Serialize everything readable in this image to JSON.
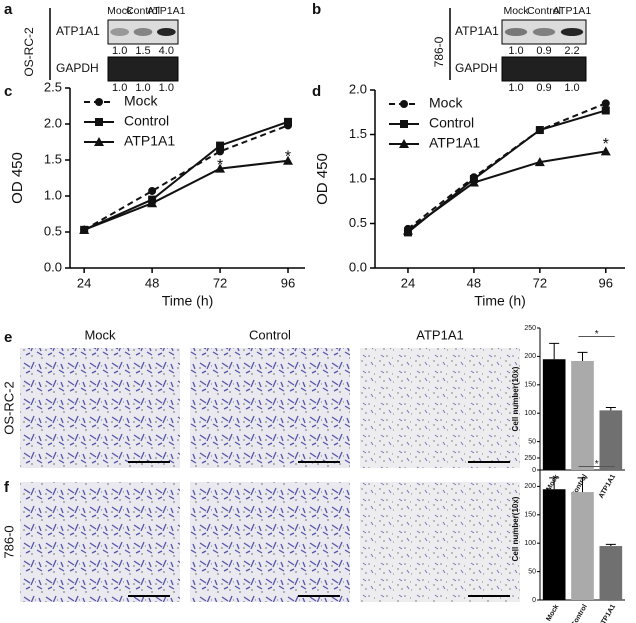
{
  "panel_labels": [
    "a",
    "b",
    "c",
    "d",
    "e",
    "f"
  ],
  "blots": [
    {
      "cell_line": "OS-RC-2",
      "lanes": [
        "Mock",
        "Control",
        "ATP1A1"
      ],
      "rows": [
        {
          "protein": "ATP1A1",
          "quant": [
            "1.0",
            "1.5",
            "4.0"
          ]
        },
        {
          "protein": "GAPDH",
          "quant": [
            "1.0",
            "1.0",
            "1.0"
          ]
        }
      ]
    },
    {
      "cell_line": "786-0",
      "lanes": [
        "Mock",
        "Control",
        "ATP1A1"
      ],
      "rows": [
        {
          "protein": "ATP1A1",
          "quant": [
            "1.0",
            "0.9",
            "2.2"
          ]
        },
        {
          "protein": "GAPDH",
          "quant": [
            "1.0",
            "0.9",
            "1.0"
          ]
        }
      ]
    }
  ],
  "micrographs": {
    "columns": [
      "Mock",
      "Control",
      "ATP1A1"
    ],
    "rows": [
      "OS-RC-2",
      "786-0"
    ]
  },
  "chart_data": [
    {
      "type": "line",
      "xlabel": "Time (h)",
      "ylabel": "OD 450",
      "x": [
        24,
        48,
        72,
        96
      ],
      "xlim": [
        19,
        102
      ],
      "xticks": [
        24,
        48,
        72,
        96
      ],
      "ylim": [
        0,
        2.5
      ],
      "yticks": [
        {
          "value": 0,
          "label": "0.0"
        },
        0.5,
        {
          "value": 1,
          "label": "1.0"
        },
        1.5,
        {
          "value": 2,
          "label": "2.0"
        },
        2.5
      ],
      "series": [
        {
          "name": "Mock",
          "color": "#111111",
          "marker": "circle",
          "dashed": true,
          "values": [
            0.53,
            1.07,
            1.62,
            1.98
          ]
        },
        {
          "name": "Control",
          "color": "#111111",
          "marker": "square",
          "dashed": false,
          "values": [
            0.53,
            0.95,
            1.7,
            2.03
          ]
        },
        {
          "name": "ATP1A1",
          "color": "#111111",
          "marker": "triangle",
          "dashed": false,
          "values": [
            0.53,
            0.9,
            1.38,
            1.49
          ]
        }
      ],
      "annotations": [
        {
          "text": "*",
          "x": 72,
          "y": 1.5
        },
        {
          "text": "*",
          "x": 96,
          "y": 1.62
        }
      ]
    },
    {
      "type": "line",
      "xlabel": "Time (h)",
      "ylabel": "OD 450",
      "x": [
        24,
        48,
        72,
        96
      ],
      "xlim": [
        12,
        103
      ],
      "xticks": [
        24,
        48,
        72,
        96
      ],
      "ylim": [
        0,
        2
      ],
      "yticks": [
        {
          "value": 0,
          "label": "0.0"
        },
        0.5,
        {
          "value": 1,
          "label": "1.0"
        },
        1.5,
        {
          "value": 2,
          "label": "2.0"
        }
      ],
      "series": [
        {
          "name": "Mock",
          "color": "#111111",
          "marker": "circle",
          "dashed": true,
          "values": [
            0.44,
            1.02,
            1.55,
            1.85
          ]
        },
        {
          "name": "Control",
          "color": "#111111",
          "marker": "square",
          "dashed": false,
          "values": [
            0.4,
            1.0,
            1.55,
            1.77
          ]
        },
        {
          "name": "ATP1A1",
          "color": "#111111",
          "marker": "triangle",
          "dashed": false,
          "values": [
            0.42,
            0.96,
            1.19,
            1.31
          ]
        }
      ],
      "annotations": [
        {
          "text": "*",
          "x": 96,
          "y": 1.45
        }
      ]
    },
    {
      "type": "bar",
      "ylabel": "Cell number(10x)",
      "categories": [
        "Mock",
        "Control",
        "ATP1A1"
      ],
      "values": [
        195,
        192,
        105
      ],
      "errors": [
        28,
        15,
        5
      ],
      "colors": [
        "#000000",
        "#aaaaaa",
        "#707070"
      ],
      "ylim": [
        0,
        250
      ],
      "yticks": [
        0,
        50,
        100,
        150,
        200,
        250
      ],
      "annotations": [
        {
          "text": "*",
          "y": 235
        }
      ]
    },
    {
      "type": "bar",
      "ylabel": "Cell number(10x)",
      "categories": [
        "Mock",
        "Control",
        "ATP1A1"
      ],
      "values": [
        195,
        190,
        95
      ],
      "errors": [
        20,
        25,
        3
      ],
      "colors": [
        "#000000",
        "#aaaaaa",
        "#707070"
      ],
      "ylim": [
        0,
        250
      ],
      "yticks": [
        0,
        50,
        100,
        150,
        200,
        250
      ],
      "annotations": [
        {
          "text": "*",
          "y": 235
        }
      ]
    }
  ]
}
